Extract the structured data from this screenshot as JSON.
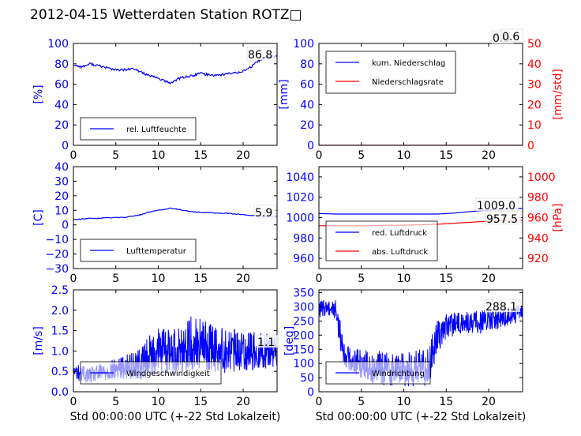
{
  "title": "2012-04-15 Wetterdaten Station ROTZ□",
  "colors": {
    "primary": "#0000ff",
    "secondary": "#ff0000",
    "axis": "#000000"
  },
  "chart_data": [
    {
      "id": "humidity",
      "type": "line",
      "xlim": [
        0,
        24
      ],
      "ylim": [
        0,
        100
      ],
      "xticks": [
        "0",
        "5",
        "10",
        "15",
        "20"
      ],
      "yticks": [
        "0",
        "20",
        "40",
        "60",
        "80",
        "100"
      ],
      "ylabel": "[%]",
      "xlabel": "",
      "legend": {
        "placement": "lower-left",
        "entries": [
          "rel. Luftfeuchte"
        ]
      },
      "annotations": [
        "86.8"
      ],
      "series": [
        {
          "name": "rel. Luftfeuchte",
          "color": "#0000ff",
          "x": [
            0,
            1,
            2,
            3,
            4,
            5,
            6,
            7,
            8,
            9,
            10,
            11,
            11.5,
            12,
            13,
            14,
            15,
            16,
            17,
            18,
            19,
            20,
            21,
            22,
            23,
            24
          ],
          "y": [
            79,
            77,
            80,
            78,
            76,
            74,
            74,
            75,
            72,
            68,
            66,
            62,
            61,
            64,
            67,
            68,
            71,
            69,
            69,
            70,
            71,
            73,
            77,
            84,
            87,
            87
          ]
        }
      ]
    },
    {
      "id": "precip",
      "type": "line",
      "xlim": [
        0,
        24
      ],
      "ylim": [
        0,
        100
      ],
      "ylim_right": [
        0,
        50
      ],
      "xticks": [
        "0",
        "5",
        "10",
        "15",
        "20"
      ],
      "yticks": [
        "0",
        "20",
        "40",
        "60",
        "80",
        "100"
      ],
      "yticks_right": [
        "0",
        "10",
        "20",
        "30",
        "40",
        "50"
      ],
      "ylabel": "[mm]",
      "ylabel_right": "[mm/std]",
      "xlabel": "",
      "legend": {
        "placement": "top-left",
        "entries": [
          "kum. Niederschlag",
          "Niederschlagsrate"
        ]
      },
      "annotations": [
        "0.0",
        "0.6"
      ],
      "series": [
        {
          "name": "kum. Niederschlag",
          "color": "#0000ff",
          "axis": "left",
          "x": [
            0,
            6,
            12,
            18,
            24
          ],
          "y": [
            0,
            0,
            0,
            0,
            0
          ]
        },
        {
          "name": "Niederschlagsrate",
          "color": "#ff0000",
          "axis": "right",
          "x": [
            0,
            6,
            12,
            18,
            24
          ],
          "y": [
            0,
            0,
            0,
            0,
            0
          ]
        }
      ]
    },
    {
      "id": "temperature",
      "type": "line",
      "xlim": [
        0,
        24
      ],
      "ylim": [
        -30,
        40
      ],
      "xticks": [
        "0",
        "5",
        "10",
        "15",
        "20"
      ],
      "yticks": [
        "−30",
        "−20",
        "−10",
        "0",
        "10",
        "20",
        "30",
        "40"
      ],
      "ylabel": "[C]",
      "xlabel": "",
      "legend": {
        "placement": "lower-left",
        "entries": [
          "Lufttemperatur"
        ]
      },
      "annotations": [
        "5.9"
      ],
      "series": [
        {
          "name": "Lufttemperatur",
          "color": "#0000ff",
          "x": [
            0,
            1,
            2,
            3,
            4,
            5,
            6,
            7,
            8,
            9,
            10,
            11,
            11.5,
            12,
            13,
            14,
            15,
            16,
            17,
            18,
            19,
            20,
            21,
            22,
            23,
            24
          ],
          "y": [
            3.5,
            4,
            4.5,
            4.5,
            5,
            5,
            5.2,
            6,
            7,
            9,
            10,
            11,
            11.5,
            11,
            10,
            9,
            8.5,
            8.5,
            8,
            8,
            7.5,
            7,
            6.5,
            6,
            6,
            5.9
          ]
        }
      ]
    },
    {
      "id": "pressure",
      "type": "line",
      "xlim": [
        0,
        24
      ],
      "ylim": [
        950,
        1050
      ],
      "ylim_right": [
        910,
        1010
      ],
      "xticks": [
        "0",
        "5",
        "10",
        "15",
        "20"
      ],
      "yticks": [
        "960",
        "980",
        "1000",
        "1020",
        "1040"
      ],
      "yticks_right": [
        "920",
        "940",
        "960",
        "980",
        "1000"
      ],
      "ylabel": "",
      "ylabel_right": "[hPa]",
      "xlabel": "",
      "legend": {
        "placement": "lower-left",
        "entries": [
          "red. Luftdruck",
          "abs. Luftdruck"
        ]
      },
      "annotations": [
        "1009.0",
        "957.5"
      ],
      "series": [
        {
          "name": "red. Luftdruck",
          "color": "#0000ff",
          "axis": "left",
          "x": [
            0,
            2,
            4,
            6,
            8,
            10,
            12,
            14,
            16,
            18,
            20,
            22,
            24
          ],
          "y": [
            1004,
            1003.5,
            1003.5,
            1003.5,
            1003.5,
            1003.5,
            1003.5,
            1003.5,
            1004.5,
            1006,
            1007.5,
            1008.5,
            1009
          ]
        },
        {
          "name": "abs. Luftdruck",
          "color": "#ff0000",
          "axis": "right",
          "x": [
            0,
            2,
            4,
            6,
            8,
            10,
            12,
            14,
            16,
            18,
            20,
            22,
            24
          ],
          "y": [
            952,
            952,
            952,
            952,
            952.5,
            952.5,
            953,
            953.5,
            954.5,
            955.5,
            956.5,
            957.2,
            957.5
          ]
        }
      ]
    },
    {
      "id": "wind-speed",
      "type": "line",
      "xlim": [
        0,
        24
      ],
      "ylim": [
        0,
        2.5
      ],
      "xticks": [
        "0",
        "5",
        "10",
        "15",
        "20"
      ],
      "yticks": [
        "0.0",
        "0.5",
        "1.0",
        "1.5",
        "2.0",
        "2.5"
      ],
      "ylabel": "[m/s]",
      "xlabel": "Std 00:00:00 UTC (+-22 Std Lokalzeit)",
      "legend": {
        "placement": "lower-left",
        "entries": [
          "Windgeschwindigkeit"
        ]
      },
      "annotations": [
        "1.1"
      ],
      "series": [
        {
          "name": "Windgeschwindigkeit",
          "color": "#0000ff",
          "x": [
            0,
            2,
            4,
            6,
            8,
            9,
            10,
            12,
            14,
            16,
            18,
            20,
            22,
            24
          ],
          "y_base": [
            0.5,
            0.4,
            0.5,
            0.6,
            0.7,
            0.9,
            1.0,
            1.0,
            1.2,
            1.1,
            1.0,
            1.0,
            1.0,
            1.0
          ],
          "y_amp": [
            0.2,
            0.2,
            0.25,
            0.3,
            0.4,
            0.5,
            0.6,
            0.6,
            0.7,
            0.6,
            0.55,
            0.5,
            0.45,
            0.4
          ]
        }
      ]
    },
    {
      "id": "wind-direction",
      "type": "line",
      "xlim": [
        0,
        24
      ],
      "ylim": [
        0,
        360
      ],
      "xticks": [
        "0",
        "5",
        "10",
        "15",
        "20"
      ],
      "yticks": [
        "0",
        "50",
        "100",
        "150",
        "200",
        "250",
        "300",
        "350"
      ],
      "ylabel": "[deg]",
      "xlabel": "Std 00:00:00 UTC (+-22 Std Lokalzeit)",
      "legend": {
        "placement": "lower-left",
        "entries": [
          "Windrichtung"
        ]
      },
      "annotations": [
        "288.1"
      ],
      "series": [
        {
          "name": "Windrichtung",
          "color": "#0000ff",
          "x": [
            0,
            1,
            2,
            2.5,
            3,
            4,
            6,
            8,
            10,
            12,
            13,
            14,
            15,
            16,
            18,
            20,
            22,
            24
          ],
          "y_base": [
            290,
            300,
            290,
            200,
            130,
            110,
            90,
            80,
            80,
            80,
            100,
            200,
            230,
            240,
            245,
            250,
            265,
            280
          ],
          "y_amp": [
            30,
            30,
            40,
            50,
            40,
            50,
            60,
            60,
            60,
            70,
            70,
            60,
            50,
            40,
            40,
            40,
            35,
            30
          ]
        }
      ]
    }
  ]
}
